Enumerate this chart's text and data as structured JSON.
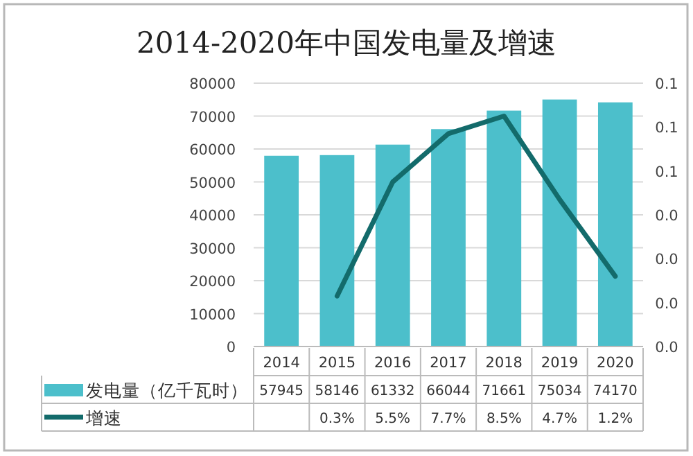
{
  "chart_data": {
    "type": "bar",
    "title": "2014-2020年中国发电量及增速",
    "categories": [
      "2014",
      "2015",
      "2016",
      "2017",
      "2018",
      "2019",
      "2020"
    ],
    "series": [
      {
        "name": "发电量（亿千瓦时）",
        "color": "#4cbfcb",
        "values": [
          57945,
          58146,
          61332,
          66044,
          71661,
          75034,
          74170
        ],
        "value_labels": [
          "57945",
          "58146",
          "61332",
          "66044",
          "71661",
          "75034",
          "74170"
        ]
      },
      {
        "name": "增速",
        "type": "line",
        "axis": "y2",
        "color": "#136b6b",
        "values": [
          null,
          0.003,
          0.055,
          0.077,
          0.085,
          0.047,
          0.012
        ],
        "value_labels": [
          null,
          "0.3%",
          "5.5%",
          "7.7%",
          "8.5%",
          "4.7%",
          "1.2%"
        ]
      }
    ],
    "ylim": [
      0,
      80000
    ],
    "yticks": [
      0,
      10000,
      20000,
      30000,
      40000,
      50000,
      60000,
      70000,
      80000
    ],
    "y2lim": [
      -0.02,
      0.1
    ],
    "y2ticks": [
      {
        "value": -0.02,
        "label": "0.0"
      },
      {
        "value": 0,
        "label": "0.0"
      },
      {
        "value": 0.02,
        "label": "0.0"
      },
      {
        "value": 0.04,
        "label": "0.0"
      },
      {
        "value": 0.06,
        "label": "0.1"
      },
      {
        "value": 0.08,
        "label": "0.1"
      },
      {
        "value": 0.1,
        "label": "0.1"
      }
    ],
    "grid": "y",
    "legend": "bottom"
  }
}
